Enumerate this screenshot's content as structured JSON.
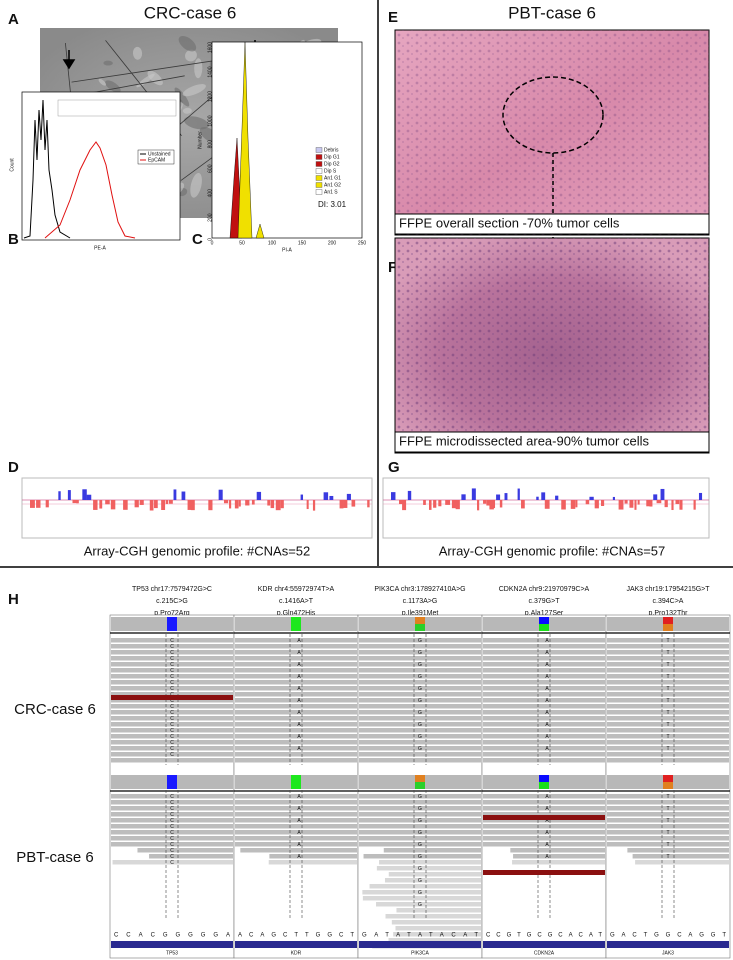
{
  "panel_letters": [
    "A",
    "B",
    "C",
    "D",
    "E",
    "F",
    "G",
    "H"
  ],
  "left_title": "CRC-case 6",
  "right_title": "PBT-case 6",
  "flow": {
    "ylabel": "Count",
    "xlabel": "PE-A",
    "legend": [
      "Unstained",
      "EpCAM"
    ]
  },
  "ploidy": {
    "ylabel": "Number",
    "xlabel": "PI-A",
    "xticks": [
      0,
      50,
      100,
      150,
      200,
      250
    ],
    "yticks": [
      0,
      200,
      400,
      600,
      800,
      1000,
      1200,
      1400,
      1600
    ],
    "legend": [
      {
        "name": "Debris",
        "color": "#c8c8f0"
      },
      {
        "name": "Dip G1",
        "color": "#c01010"
      },
      {
        "name": "Dip G2",
        "color": "#c01010"
      },
      {
        "name": "Dip S",
        "color": "#ffffff"
      },
      {
        "name": "An1 G1",
        "color": "#f0e000"
      },
      {
        "name": "An1 G2",
        "color": "#f0e000"
      },
      {
        "name": "An1 S",
        "color": "#ffffff"
      }
    ],
    "di": "DI: 3.01"
  },
  "cgh_left": "Array-CGH genomic profile: #CNAs=52",
  "cgh_right": "Array-CGH genomic profile: #CNAs=57",
  "caption_E": "FFPE overall section -70% tumor cells",
  "caption_F": "FFPE microdissected area-90% tumor cells",
  "igv": {
    "rows": [
      "CRC-case 6",
      "PBT-case 6"
    ],
    "variants": [
      {
        "lines": [
          "TP53 chr17:7579472G>C",
          "c.215C>G",
          "p.Pro72Arg"
        ],
        "base": "C",
        "colors": [
          "#1a1aff",
          "#1a1aff"
        ],
        "seq": "CCACGGGGGA",
        "gene": "TP53"
      },
      {
        "lines": [
          "KDR chr4:55972974T>A",
          "c.1416A>T",
          "p.Gln472His"
        ],
        "base": "A",
        "colors": [
          "#1ee81e",
          "#1ee81e"
        ],
        "seq": "ACAGCTTGGCT",
        "gene": "KDR"
      },
      {
        "lines": [
          "PIK3CA chr3:178927410A>G",
          "c.1173A>G",
          "p.Ile391Met"
        ],
        "base": "G",
        "colors": [
          "#e08020",
          "#2ad02a"
        ],
        "seq": "GATATATACAT",
        "gene": "PIK3CA"
      },
      {
        "lines": [
          "CDKN2A chr9:21970979C>A",
          "c.379G>T",
          "p.Ala127Ser"
        ],
        "base": "A",
        "colors": [
          "#0a0aff",
          "#19e019"
        ],
        "seq": "CCGTGCGCACAT",
        "gene": "CDKN2A"
      },
      {
        "lines": [
          "JAK3 chr19:17954215G>T",
          "c.394C>A",
          "p.Pro132Thr"
        ],
        "base": "T",
        "colors": [
          "#e02020",
          "#e08020"
        ],
        "seq": "GACTGGCAGGT",
        "gene": "JAK3"
      }
    ]
  }
}
